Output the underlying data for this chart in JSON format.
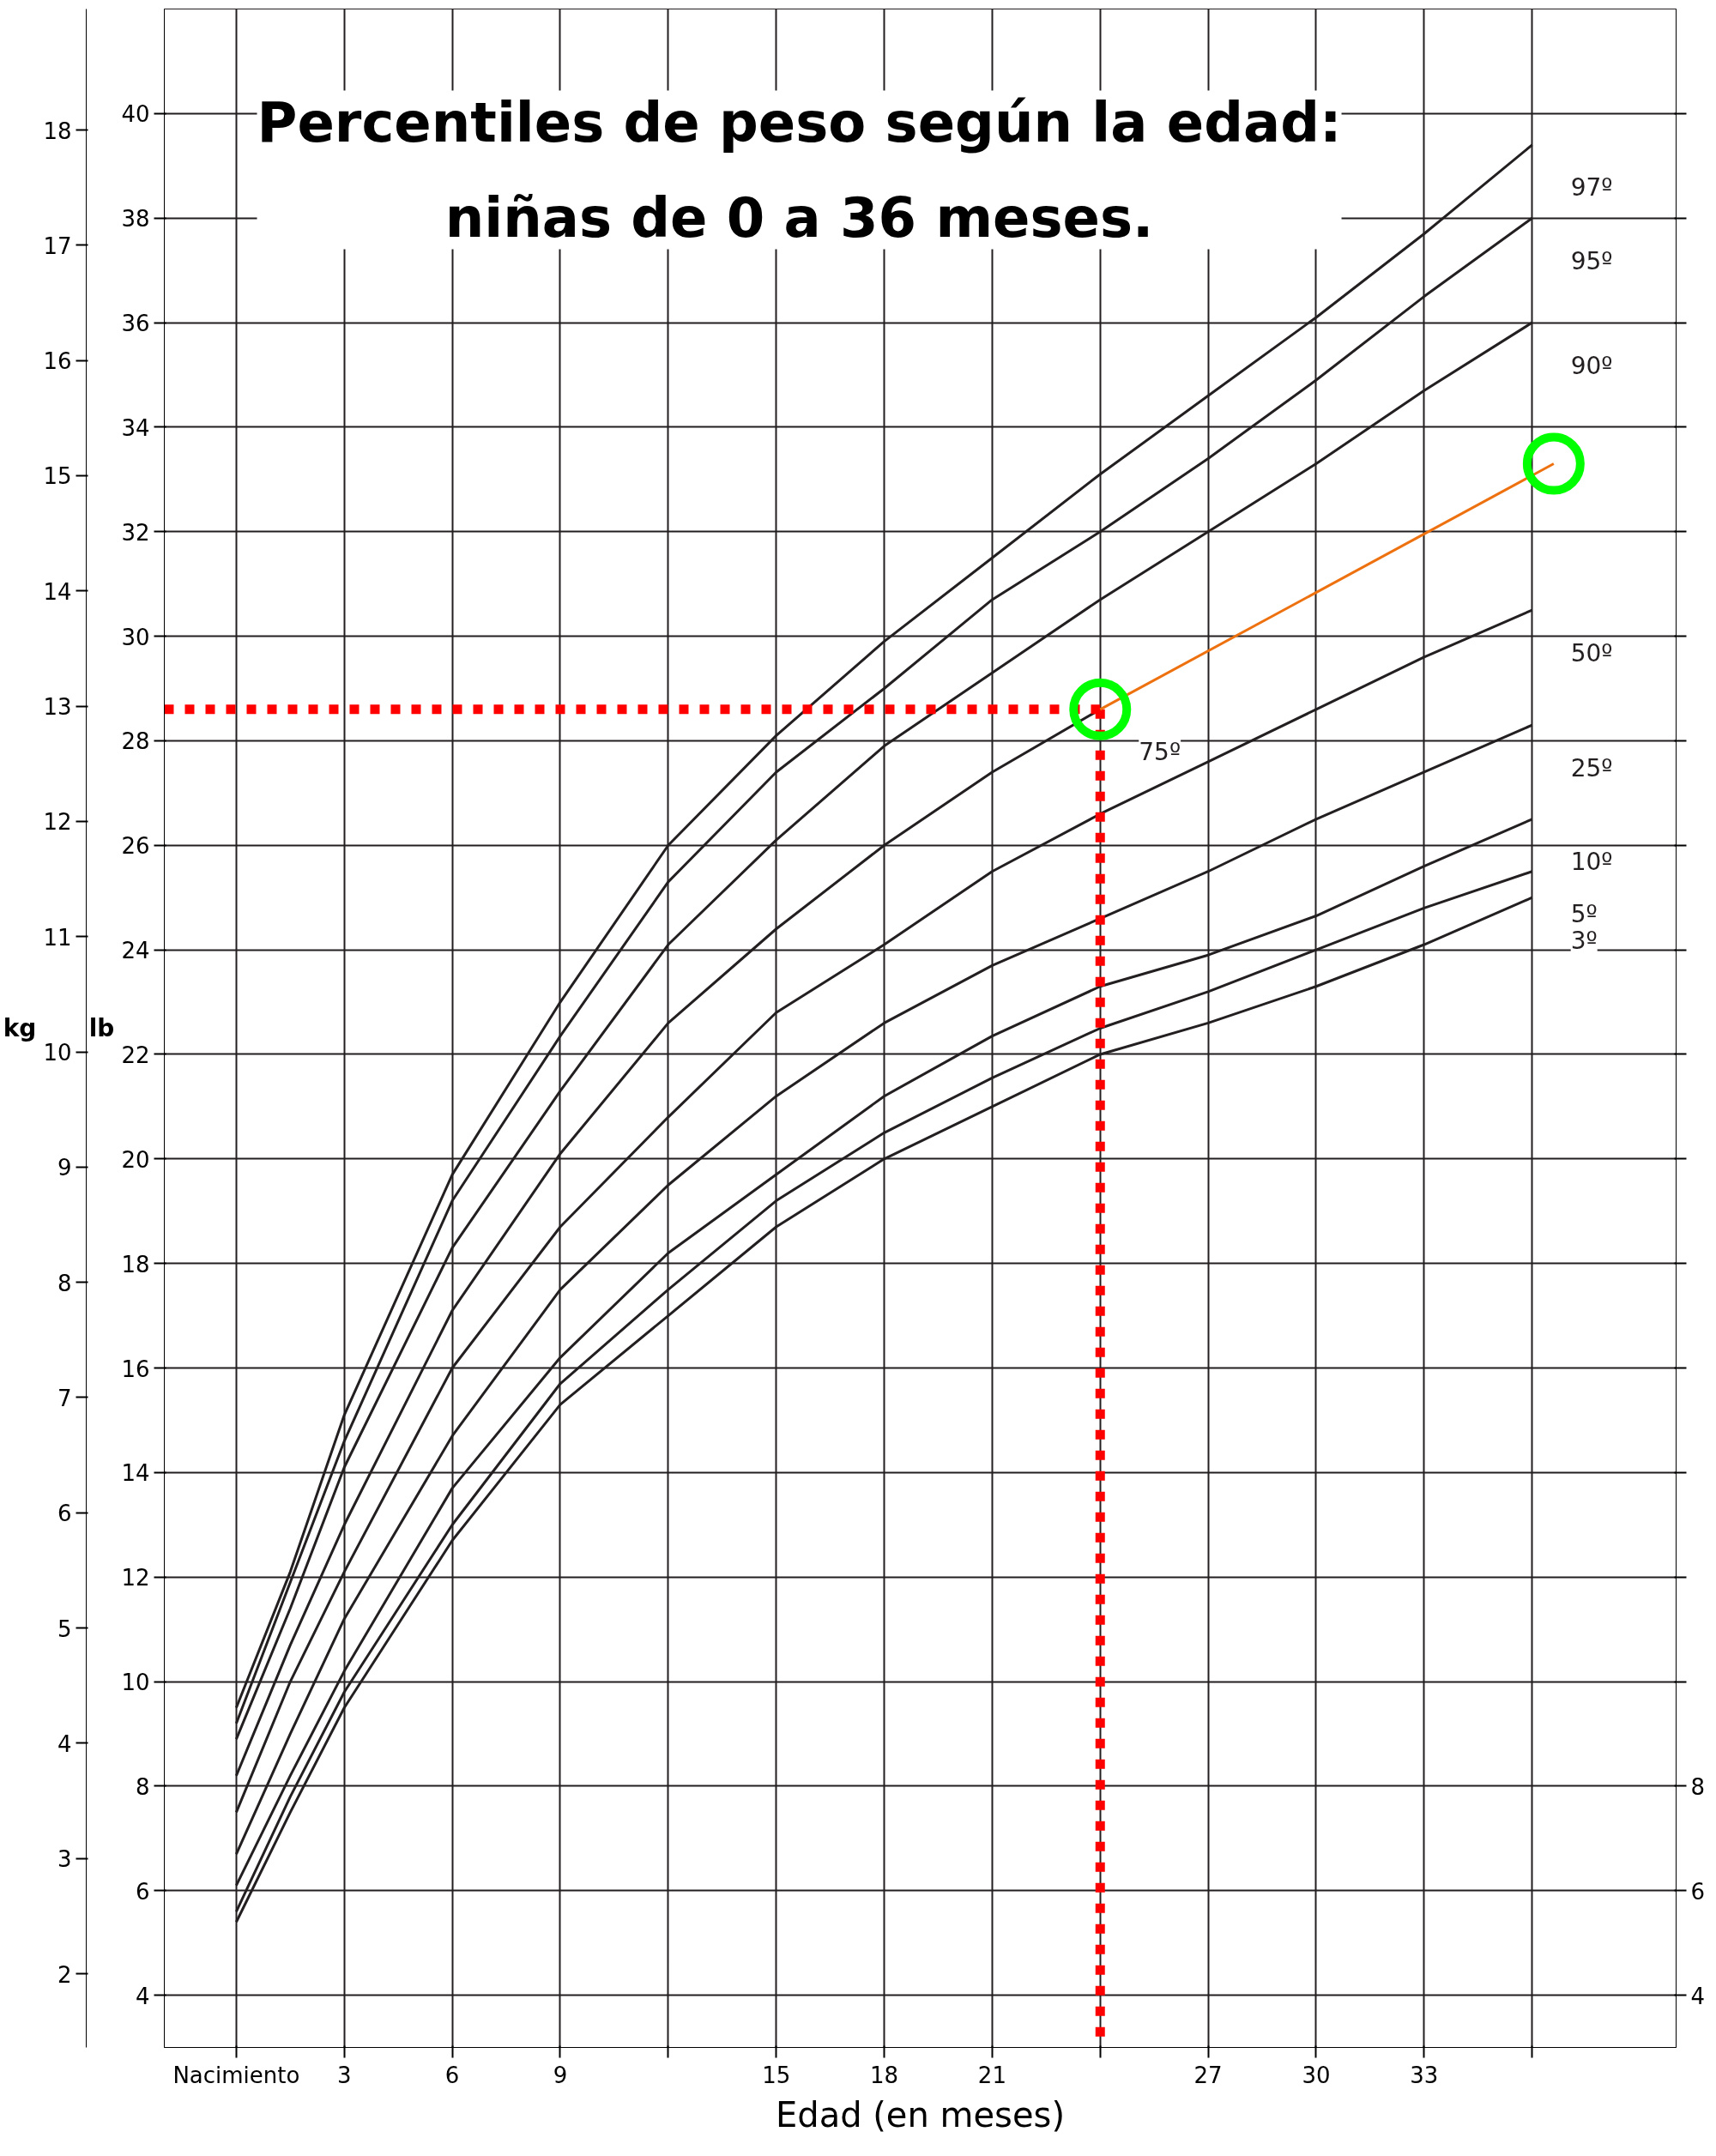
{
  "chart_data": {
    "type": "line",
    "title": "Percentiles de peso según la edad:\nniñas de 0 a 36 meses.",
    "xlabel": "Edad (en meses)",
    "ylabel": "lb",
    "y2label": "kg",
    "xlim": [
      -2,
      40
    ],
    "ylim": [
      3,
      42
    ],
    "y2lim": [
      1.36,
      19.05
    ],
    "y3lim": [
      3,
      42
    ],
    "xticks": [
      {
        "value": 0,
        "label": "Nacimiento"
      },
      3,
      6,
      9,
      {
        "value": 12,
        "label": null
      },
      15,
      18,
      21,
      {
        "value": 24,
        "label": null
      },
      27,
      30,
      33,
      {
        "value": 36,
        "label": null
      }
    ],
    "yticks": [
      4,
      6,
      8,
      10,
      12,
      14,
      16,
      18,
      20,
      22,
      24,
      26,
      28,
      30,
      32,
      34,
      36,
      38,
      40
    ],
    "y2ticks": [
      2,
      3,
      4,
      5,
      6,
      7,
      8,
      9,
      10,
      11,
      12,
      13,
      14,
      15,
      16,
      17,
      18
    ],
    "y3ticks": [
      4,
      6,
      8,
      {
        "value": 10,
        "label": null
      },
      {
        "value": 12,
        "label": null
      },
      {
        "value": 14,
        "label": null
      },
      {
        "value": 16,
        "label": null
      },
      {
        "value": 18,
        "label": null
      },
      {
        "value": 20,
        "label": null
      },
      {
        "value": 22,
        "label": null
      },
      {
        "value": 24,
        "label": null
      },
      {
        "value": 26,
        "label": null
      },
      {
        "value": 28,
        "label": null
      },
      {
        "value": 30,
        "label": null
      },
      {
        "value": 32,
        "label": null
      },
      {
        "value": 34,
        "label": null
      },
      {
        "value": 36,
        "label": null
      },
      {
        "value": 38,
        "label": null
      },
      {
        "value": 40,
        "label": null
      }
    ],
    "grid": true,
    "line_style": "solid",
    "marker": "none",
    "x": [
      0,
      1.5,
      3,
      6,
      9,
      12,
      15,
      18,
      21,
      24,
      27,
      30,
      33,
      36
    ],
    "series": [
      {
        "name": "97º",
        "color": "#231f20",
        "values": [
          9.5,
          12.1,
          15.1,
          19.7,
          23.0,
          26.0,
          28.1,
          29.9,
          31.5,
          33.1,
          34.6,
          36.1,
          37.7,
          39.4
        ]
      },
      {
        "name": "95º",
        "color": "#231f20",
        "values": [
          9.2,
          11.9,
          14.6,
          19.2,
          22.35,
          25.3,
          27.4,
          29.0,
          30.7,
          32.0,
          33.4,
          34.9,
          36.5,
          38.0
        ]
      },
      {
        "name": "90º",
        "color": "#231f20",
        "values": [
          8.9,
          11.4,
          14.1,
          18.3,
          21.3,
          24.1,
          26.1,
          27.9,
          29.3,
          30.7,
          32.0,
          33.3,
          34.7,
          36.0
        ]
      },
      {
        "name": "75º",
        "color": "#231f20",
        "x": [
          0,
          1.5,
          3,
          6,
          9,
          12,
          15,
          18,
          21,
          24
        ],
        "values": [
          8.2,
          10.7,
          13.0,
          17.1,
          20.1,
          22.6,
          24.4,
          26.0,
          27.4,
          28.6
        ]
      },
      {
        "name": "50º",
        "color": "#231f20",
        "values": [
          7.5,
          10.0,
          12.1,
          16.0,
          18.7,
          20.8,
          22.8,
          24.1,
          25.5,
          26.6,
          27.6,
          28.6,
          29.6,
          30.5
        ]
      },
      {
        "name": "25º",
        "color": "#231f20",
        "values": [
          6.7,
          9.0,
          11.2,
          14.7,
          17.5,
          19.5,
          21.2,
          22.6,
          23.7,
          24.6,
          25.5,
          26.5,
          27.4,
          28.3
        ]
      },
      {
        "name": "10º",
        "color": "#231f20",
        "values": [
          6.1,
          8.2,
          10.2,
          13.7,
          16.2,
          18.2,
          19.7,
          21.2,
          22.35,
          23.3,
          23.9,
          24.65,
          25.6,
          26.5
        ]
      },
      {
        "name": "5º",
        "color": "#231f20",
        "values": [
          5.6,
          7.8,
          9.8,
          13.0,
          15.7,
          17.5,
          19.2,
          20.5,
          21.55,
          22.5,
          23.2,
          24.0,
          24.8,
          25.5
        ]
      },
      {
        "name": "3º",
        "color": "#231f20",
        "values": [
          5.4,
          7.5,
          9.5,
          12.7,
          15.3,
          17.0,
          18.7,
          20.0,
          21.0,
          22.0,
          22.6,
          23.3,
          24.1,
          25.0
        ]
      },
      {
        "color": "#ff0000",
        "line_style": "dotted",
        "x": [
          -2,
          24
        ],
        "values": [
          28.6,
          28.6
        ]
      },
      {
        "color": "#ff0000",
        "line_style": "dotted",
        "x": [
          24,
          24
        ],
        "values": [
          28.6,
          3
        ]
      },
      {
        "color": "#ee7110",
        "x": [
          24,
          36.6
        ],
        "values": [
          28.6,
          33.3
        ]
      },
      {
        "type": "scatter",
        "marker": "circle",
        "color": "#00ff00",
        "x": [
          24,
          36.6
        ],
        "values": [
          28.6,
          33.3
        ]
      }
    ]
  }
}
